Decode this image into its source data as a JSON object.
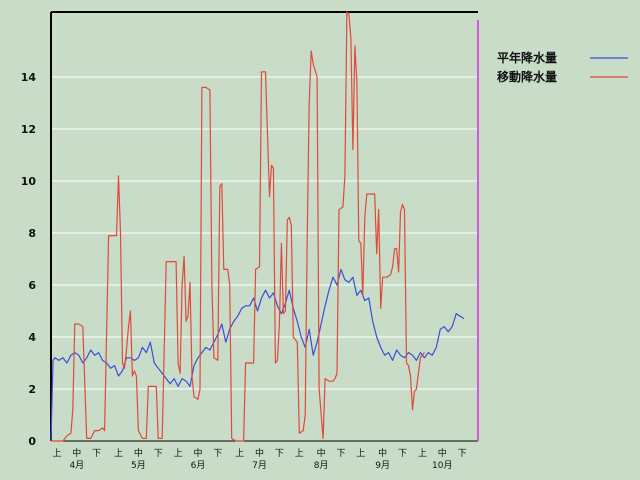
{
  "colors": {
    "background": "#c8dcc8",
    "grid": "#ffffff",
    "normal_series": "#3a4fd6",
    "moving_series": "#e04a3a",
    "marker": "#d65ad6",
    "axis": "#000000"
  },
  "chart_data": {
    "type": "line",
    "title": "",
    "xlabel": "",
    "ylabel": "",
    "ylim": [
      0,
      16.5
    ],
    "y_ticks": [
      0,
      2,
      4,
      6,
      8,
      10,
      12,
      14
    ],
    "grid": true,
    "legend_position": "top-right",
    "x_index_range": [
      0,
      215
    ],
    "x_ticks_top": [
      {
        "label": "上",
        "at": 3
      },
      {
        "label": "中",
        "at": 13
      },
      {
        "label": "下",
        "at": 23
      },
      {
        "label": "上",
        "at": 34
      },
      {
        "label": "中",
        "at": 44
      },
      {
        "label": "下",
        "at": 54
      },
      {
        "label": "上",
        "at": 64
      },
      {
        "label": "中",
        "at": 74
      },
      {
        "label": "下",
        "at": 84
      },
      {
        "label": "上",
        "at": 95
      },
      {
        "label": "中",
        "at": 105
      },
      {
        "label": "下",
        "at": 115
      },
      {
        "label": "上",
        "at": 125
      },
      {
        "label": "中",
        "at": 136
      },
      {
        "label": "下",
        "at": 146
      },
      {
        "label": "上",
        "at": 156
      },
      {
        "label": "中",
        "at": 167
      },
      {
        "label": "下",
        "at": 177
      },
      {
        "label": "上",
        "at": 187
      },
      {
        "label": "中",
        "at": 197
      },
      {
        "label": "下",
        "at": 207
      }
    ],
    "x_ticks_bottom": [
      {
        "label": "4月",
        "at": 13
      },
      {
        "label": "5月",
        "at": 44
      },
      {
        "label": "6月",
        "at": 74
      },
      {
        "label": "7月",
        "at": 105
      },
      {
        "label": "8月",
        "at": 136
      },
      {
        "label": "9月",
        "at": 167
      },
      {
        "label": "10月",
        "at": 197
      }
    ],
    "current_marker_at": 215,
    "series": [
      {
        "name": "平年降水量",
        "color": "#3a4fd6",
        "points": [
          [
            0,
            0.0
          ],
          [
            1,
            3.1
          ],
          [
            2,
            3.2
          ],
          [
            4,
            3.1
          ],
          [
            6,
            3.2
          ],
          [
            8,
            3.0
          ],
          [
            10,
            3.3
          ],
          [
            12,
            3.4
          ],
          [
            14,
            3.3
          ],
          [
            16,
            3.0
          ],
          [
            18,
            3.2
          ],
          [
            20,
            3.5
          ],
          [
            22,
            3.3
          ],
          [
            24,
            3.4
          ],
          [
            26,
            3.1
          ],
          [
            28,
            3.0
          ],
          [
            30,
            2.8
          ],
          [
            32,
            2.9
          ],
          [
            34,
            2.5
          ],
          [
            36,
            2.7
          ],
          [
            38,
            3.2
          ],
          [
            40,
            3.2
          ],
          [
            42,
            3.1
          ],
          [
            44,
            3.2
          ],
          [
            46,
            3.6
          ],
          [
            48,
            3.4
          ],
          [
            50,
            3.8
          ],
          [
            52,
            3.0
          ],
          [
            54,
            2.8
          ],
          [
            56,
            2.6
          ],
          [
            58,
            2.4
          ],
          [
            60,
            2.2
          ],
          [
            62,
            2.4
          ],
          [
            64,
            2.1
          ],
          [
            66,
            2.4
          ],
          [
            68,
            2.3
          ],
          [
            70,
            2.1
          ],
          [
            72,
            2.9
          ],
          [
            74,
            3.2
          ],
          [
            76,
            3.4
          ],
          [
            78,
            3.6
          ],
          [
            80,
            3.5
          ],
          [
            82,
            3.8
          ],
          [
            84,
            4.1
          ],
          [
            86,
            4.5
          ],
          [
            88,
            3.8
          ],
          [
            90,
            4.3
          ],
          [
            92,
            4.6
          ],
          [
            94,
            4.8
          ],
          [
            96,
            5.1
          ],
          [
            98,
            5.2
          ],
          [
            100,
            5.2
          ],
          [
            102,
            5.5
          ],
          [
            104,
            5.0
          ],
          [
            106,
            5.5
          ],
          [
            108,
            5.8
          ],
          [
            110,
            5.5
          ],
          [
            112,
            5.7
          ],
          [
            114,
            5.2
          ],
          [
            116,
            4.9
          ],
          [
            118,
            5.3
          ],
          [
            120,
            5.8
          ],
          [
            122,
            5.1
          ],
          [
            124,
            4.6
          ],
          [
            126,
            4.0
          ],
          [
            128,
            3.6
          ],
          [
            130,
            4.3
          ],
          [
            132,
            3.3
          ],
          [
            134,
            3.8
          ],
          [
            136,
            4.5
          ],
          [
            138,
            5.2
          ],
          [
            140,
            5.8
          ],
          [
            142,
            6.3
          ],
          [
            144,
            6.0
          ],
          [
            146,
            6.6
          ],
          [
            148,
            6.2
          ],
          [
            150,
            6.1
          ],
          [
            152,
            6.3
          ],
          [
            154,
            5.6
          ],
          [
            156,
            5.8
          ],
          [
            158,
            5.4
          ],
          [
            160,
            5.5
          ],
          [
            162,
            4.6
          ],
          [
            164,
            4.0
          ],
          [
            166,
            3.6
          ],
          [
            168,
            3.3
          ],
          [
            170,
            3.4
          ],
          [
            172,
            3.1
          ],
          [
            174,
            3.5
          ],
          [
            176,
            3.3
          ],
          [
            178,
            3.2
          ],
          [
            180,
            3.4
          ],
          [
            182,
            3.3
          ],
          [
            184,
            3.1
          ],
          [
            186,
            3.4
          ],
          [
            188,
            3.2
          ],
          [
            190,
            3.4
          ],
          [
            192,
            3.3
          ],
          [
            194,
            3.6
          ],
          [
            196,
            4.3
          ],
          [
            198,
            4.4
          ],
          [
            200,
            4.2
          ],
          [
            202,
            4.4
          ],
          [
            204,
            4.9
          ],
          [
            206,
            4.8
          ],
          [
            208,
            4.7
          ]
        ]
      },
      {
        "name": "移動降水量",
        "color": "#e04a3a",
        "points": [
          [
            0,
            0.0
          ],
          [
            6,
            0.0
          ],
          [
            8,
            0.2
          ],
          [
            10,
            0.3
          ],
          [
            11,
            1.2
          ],
          [
            12,
            4.5
          ],
          [
            14,
            4.5
          ],
          [
            16,
            4.4
          ],
          [
            18,
            0.1
          ],
          [
            20,
            0.1
          ],
          [
            22,
            0.4
          ],
          [
            24,
            0.4
          ],
          [
            26,
            0.5
          ],
          [
            27,
            0.4
          ],
          [
            29,
            7.9
          ],
          [
            31,
            7.9
          ],
          [
            33,
            7.9
          ],
          [
            34,
            10.2
          ],
          [
            35,
            8.0
          ],
          [
            36,
            3.0
          ],
          [
            37,
            2.8
          ],
          [
            38,
            3.5
          ],
          [
            39,
            4.4
          ],
          [
            40,
            5.0
          ],
          [
            41,
            2.5
          ],
          [
            42,
            2.7
          ],
          [
            43,
            2.5
          ],
          [
            44,
            0.4
          ],
          [
            46,
            0.1
          ],
          [
            48,
            0.1
          ],
          [
            49,
            2.1
          ],
          [
            51,
            2.1
          ],
          [
            53,
            2.1
          ],
          [
            54,
            0.1
          ],
          [
            56,
            0.1
          ],
          [
            58,
            6.9
          ],
          [
            60,
            6.9
          ],
          [
            63,
            6.9
          ],
          [
            64,
            3.0
          ],
          [
            65,
            2.6
          ],
          [
            66,
            6.0
          ],
          [
            67,
            7.1
          ],
          [
            68,
            4.6
          ],
          [
            69,
            4.8
          ],
          [
            70,
            6.1
          ],
          [
            71,
            2.5
          ],
          [
            72,
            1.7
          ],
          [
            74,
            1.6
          ],
          [
            75,
            2.0
          ],
          [
            76,
            13.6
          ],
          [
            78,
            13.6
          ],
          [
            80,
            13.5
          ],
          [
            81,
            6.0
          ],
          [
            82,
            3.2
          ],
          [
            84,
            3.1
          ],
          [
            85,
            9.8
          ],
          [
            86,
            9.9
          ],
          [
            87,
            6.6
          ],
          [
            89,
            6.6
          ],
          [
            90,
            6.0
          ],
          [
            91,
            0.1
          ],
          [
            93,
            0.0
          ],
          [
            95,
            0.0
          ],
          [
            97,
            0.0
          ],
          [
            98,
            3.0
          ],
          [
            100,
            3.0
          ],
          [
            102,
            3.0
          ],
          [
            103,
            6.6
          ],
          [
            105,
            6.7
          ],
          [
            106,
            14.2
          ],
          [
            108,
            14.2
          ],
          [
            110,
            9.4
          ],
          [
            111,
            10.6
          ],
          [
            112,
            10.5
          ],
          [
            113,
            3.0
          ],
          [
            114,
            3.1
          ],
          [
            115,
            4.5
          ],
          [
            116,
            7.6
          ],
          [
            117,
            4.9
          ],
          [
            118,
            5.0
          ],
          [
            119,
            8.5
          ],
          [
            120,
            8.6
          ],
          [
            121,
            8.3
          ],
          [
            122,
            4.0
          ],
          [
            124,
            3.8
          ],
          [
            125,
            0.3
          ],
          [
            127,
            0.4
          ],
          [
            128,
            1.0
          ],
          [
            129,
            7.8
          ],
          [
            130,
            13.0
          ],
          [
            131,
            15.0
          ],
          [
            132,
            14.5
          ],
          [
            134,
            14.0
          ],
          [
            135,
            2.0
          ],
          [
            137,
            0.1
          ],
          [
            138,
            2.4
          ],
          [
            140,
            2.3
          ],
          [
            142,
            2.3
          ],
          [
            143,
            2.4
          ],
          [
            144,
            2.6
          ],
          [
            145,
            8.9
          ],
          [
            147,
            9.0
          ],
          [
            148,
            10.2
          ],
          [
            149,
            16.5
          ],
          [
            150,
            16.4
          ],
          [
            151,
            15.5
          ],
          [
            152,
            11.2
          ],
          [
            153,
            15.2
          ],
          [
            154,
            13.8
          ],
          [
            155,
            7.7
          ],
          [
            156,
            7.6
          ],
          [
            157,
            5.6
          ],
          [
            158,
            8.6
          ],
          [
            159,
            9.5
          ],
          [
            161,
            9.5
          ],
          [
            163,
            9.5
          ],
          [
            164,
            7.2
          ],
          [
            165,
            8.9
          ],
          [
            166,
            5.1
          ],
          [
            167,
            6.3
          ],
          [
            169,
            6.3
          ],
          [
            171,
            6.4
          ],
          [
            172,
            6.7
          ],
          [
            173,
            7.4
          ],
          [
            174,
            7.4
          ],
          [
            175,
            6.5
          ],
          [
            176,
            8.8
          ],
          [
            177,
            9.1
          ],
          [
            178,
            8.9
          ],
          [
            179,
            3.0
          ],
          [
            180,
            2.9
          ],
          [
            181,
            2.5
          ],
          [
            182,
            1.2
          ],
          [
            183,
            1.9
          ],
          [
            184,
            2.0
          ],
          [
            185,
            2.6
          ],
          [
            186,
            3.2
          ],
          [
            187,
            3.3
          ],
          [
            188,
            3.4
          ]
        ]
      }
    ]
  }
}
